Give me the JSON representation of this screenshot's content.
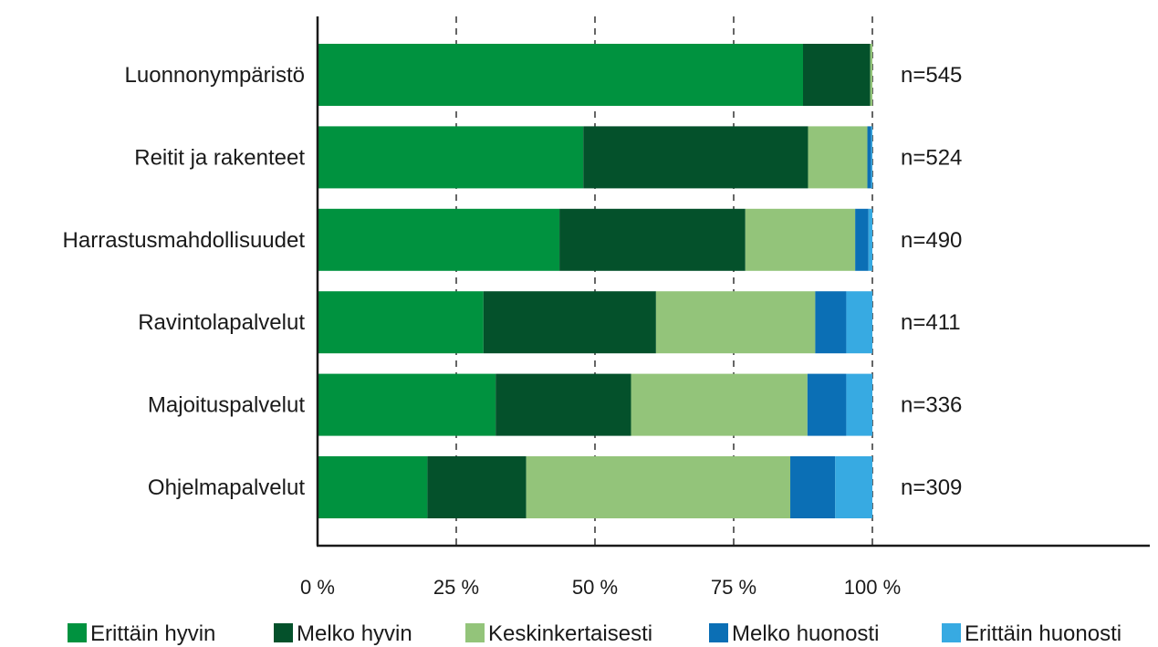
{
  "chart_data": {
    "type": "bar",
    "orientation": "horizontal",
    "stacked": true,
    "categories": [
      "Luonnonympäristö",
      "Reitit ja rakenteet",
      "Harrastusmahdollisuudet",
      "Ravintolapalvelut",
      "Majoituspalvelut",
      "Ohjelmapalvelut"
    ],
    "n_labels": [
      "n=545",
      "n=524",
      "n=490",
      "n=411",
      "n=336",
      "n=309"
    ],
    "series": [
      {
        "name": "Erittäin hyvin",
        "color": "#00923f",
        "values": [
          87.5,
          47.9,
          43.6,
          29.9,
          32.1,
          19.8
        ]
      },
      {
        "name": "Melko hyvin",
        "color": "#04512b",
        "values": [
          12.1,
          40.5,
          33.5,
          31.1,
          24.4,
          17.8
        ]
      },
      {
        "name": "Keskinkertaisesti",
        "color": "#93c47a",
        "values": [
          0.4,
          10.7,
          19.8,
          28.7,
          31.8,
          47.6
        ]
      },
      {
        "name": "Melko huonosti",
        "color": "#0b6fb5",
        "values": [
          0.0,
          0.7,
          2.4,
          5.6,
          7.0,
          8.1
        ]
      },
      {
        "name": "Erittäin huonosti",
        "color": "#37aae2",
        "values": [
          0.0,
          0.2,
          0.7,
          4.7,
          4.7,
          6.7
        ]
      }
    ],
    "x_ticks": [
      "0 %",
      "25 %",
      "50 %",
      "75 %",
      "100 %"
    ],
    "x_tick_values": [
      0,
      25,
      50,
      75,
      100
    ],
    "xlim": [
      0,
      100
    ],
    "grid": "vertical dashed",
    "legend_position": "bottom"
  }
}
